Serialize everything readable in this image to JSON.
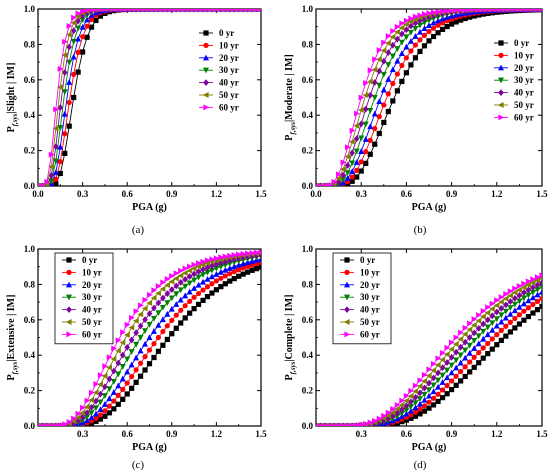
{
  "chart_data": [
    {
      "type": "line",
      "panel_label": "(a)",
      "xlabel": "PGA (g)",
      "ylabel_main": "P",
      "ylabel_sub": "f,sys",
      "ylabel_rest": "|Slight | IM]",
      "xlim": [
        0,
        1.5
      ],
      "ylim": [
        0,
        1.0
      ],
      "xticks": [
        "0.0",
        "0.3",
        "0.6",
        "0.9",
        "1.2",
        "1.5"
      ],
      "yticks": [
        "0.0",
        "0.2",
        "0.4",
        "0.6",
        "0.8",
        "1.0"
      ],
      "legend_position": "top-right",
      "series": [
        {
          "name": "0 yr",
          "median": 0.24,
          "beta": 0.32
        },
        {
          "name": "10 yr",
          "median": 0.215,
          "beta": 0.33
        },
        {
          "name": "20 yr",
          "median": 0.195,
          "beta": 0.34
        },
        {
          "name": "30 yr",
          "median": 0.175,
          "beta": 0.35
        },
        {
          "name": "40 yr",
          "median": 0.158,
          "beta": 0.36
        },
        {
          "name": "50 yr",
          "median": 0.142,
          "beta": 0.37
        },
        {
          "name": "60 yr",
          "median": 0.128,
          "beta": 0.38
        }
      ]
    },
    {
      "type": "line",
      "panel_label": "(b)",
      "xlabel": "PGA (g)",
      "ylabel_main": "P",
      "ylabel_sub": "f,sys",
      "ylabel_rest": "|Moderate | IM]",
      "xlim": [
        0,
        1.5
      ],
      "ylim": [
        0,
        1.0
      ],
      "xticks": [
        "0.0",
        "0.3",
        "0.6",
        "0.9",
        "1.2",
        "1.5"
      ],
      "yticks": [
        "0.0",
        "0.2",
        "0.4",
        "0.6",
        "0.8",
        "1.0"
      ],
      "legend_position": "right",
      "series": [
        {
          "name": "0 yr",
          "median": 0.52,
          "beta": 0.4
        },
        {
          "name": "10 yr",
          "median": 0.47,
          "beta": 0.41
        },
        {
          "name": "20 yr",
          "median": 0.43,
          "beta": 0.42
        },
        {
          "name": "30 yr",
          "median": 0.39,
          "beta": 0.43
        },
        {
          "name": "40 yr",
          "median": 0.355,
          "beta": 0.44
        },
        {
          "name": "50 yr",
          "median": 0.325,
          "beta": 0.45
        },
        {
          "name": "60 yr",
          "median": 0.3,
          "beta": 0.46
        }
      ]
    },
    {
      "type": "line",
      "panel_label": "(c)",
      "xlabel": "PGA (g)",
      "ylabel_main": "P",
      "ylabel_sub": "f,sys",
      "ylabel_rest": "|Extensive | IM]",
      "xlim": [
        0,
        1.5
      ],
      "ylim": [
        0,
        1.0
      ],
      "xticks": [
        "0.3",
        "0.6",
        "0.9",
        "1.2",
        "1.5"
      ],
      "yticks": [
        "0.0",
        "0.2",
        "0.4",
        "0.6",
        "0.8",
        "1.0"
      ],
      "legend_position": "top-left",
      "series": [
        {
          "name": "0 yr",
          "median": 0.88,
          "beta": 0.42
        },
        {
          "name": "10 yr",
          "median": 0.81,
          "beta": 0.43
        },
        {
          "name": "20 yr",
          "median": 0.75,
          "beta": 0.44
        },
        {
          "name": "30 yr",
          "median": 0.69,
          "beta": 0.45
        },
        {
          "name": "40 yr",
          "median": 0.64,
          "beta": 0.46
        },
        {
          "name": "50 yr",
          "median": 0.59,
          "beta": 0.47
        },
        {
          "name": "60 yr",
          "median": 0.55,
          "beta": 0.48
        }
      ]
    },
    {
      "type": "line",
      "panel_label": "(d)",
      "xlabel": "PGA (g)",
      "ylabel_main": "P",
      "ylabel_sub": "f,sys",
      "ylabel_rest": "|Complete | IM]",
      "xlim": [
        0,
        1.5
      ],
      "ylim": [
        0,
        1.0
      ],
      "xticks": [
        "0.3",
        "0.6",
        "0.9",
        "1.2",
        "1.5"
      ],
      "yticks": [
        "0.0",
        "0.2",
        "0.4",
        "0.6",
        "0.8",
        "1.0"
      ],
      "legend_position": "top-left",
      "series": [
        {
          "name": "0 yr",
          "median": 1.25,
          "beta": 0.4
        },
        {
          "name": "10 yr",
          "median": 1.18,
          "beta": 0.41
        },
        {
          "name": "20 yr",
          "median": 1.12,
          "beta": 0.42
        },
        {
          "name": "30 yr",
          "median": 1.07,
          "beta": 0.43
        },
        {
          "name": "40 yr",
          "median": 1.02,
          "beta": 0.44
        },
        {
          "name": "50 yr",
          "median": 0.97,
          "beta": 0.45
        },
        {
          "name": "60 yr",
          "median": 0.93,
          "beta": 0.46
        }
      ]
    }
  ],
  "style": {
    "series_colors": [
      "#000000",
      "#ff0000",
      "#0000ff",
      "#008000",
      "#8000a0",
      "#808000",
      "#ff00ff"
    ],
    "series_markers": [
      "square",
      "circle",
      "triangle-up",
      "triangle-down",
      "diamond",
      "triangle-left",
      "triangle-right"
    ],
    "x_sample_step": 0.03
  }
}
